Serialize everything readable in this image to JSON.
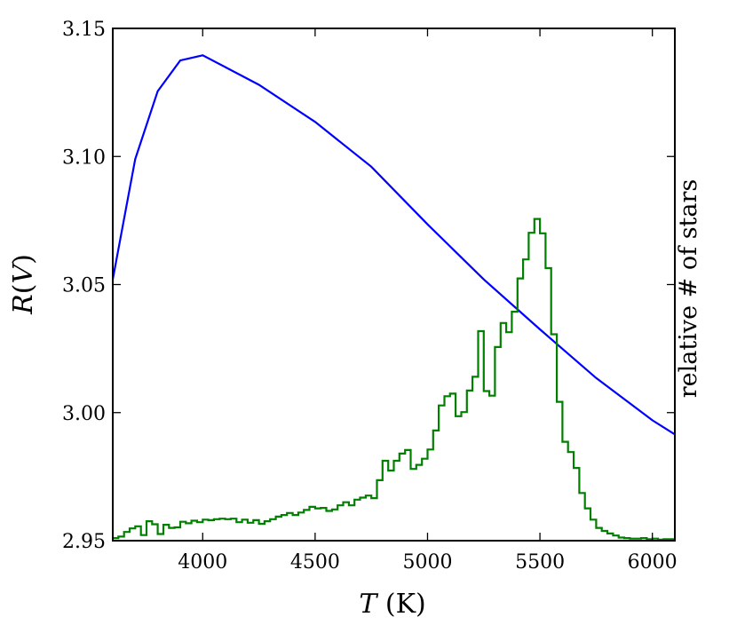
{
  "chart_data": {
    "type": "line",
    "title": "",
    "xlabel": "T (K)",
    "ylabel": "R(V)",
    "y2label": "relative # of stars",
    "xlim": [
      3600,
      6100
    ],
    "ylim": [
      2.95,
      3.15
    ],
    "x_ticks": [
      4000,
      4500,
      5000,
      5500,
      6000
    ],
    "y_ticks": [
      2.95,
      3.0,
      3.05,
      3.1,
      3.15
    ],
    "y_tick_labels": [
      "2.95",
      "3.00",
      "3.05",
      "3.10",
      "3.15"
    ],
    "grid": false,
    "legend": "none",
    "series": [
      {
        "kind": "line",
        "color": "#0000ff",
        "x": [
          3600,
          3700,
          3800,
          3900,
          4000,
          4250,
          4500,
          4750,
          5000,
          5250,
          5500,
          5750,
          6000,
          6100
        ],
        "y": [
          3.052,
          3.099,
          3.1255,
          3.1375,
          3.1395,
          3.128,
          3.1135,
          3.096,
          3.0735,
          3.052,
          3.0325,
          3.0135,
          2.997,
          2.9915
        ]
      },
      {
        "kind": "step-histogram",
        "color": "#007f00",
        "bin_width": 25,
        "bin_start": 3600,
        "relative_counts": [
          0.005,
          0.008,
          0.017,
          0.024,
          0.028,
          0.011,
          0.038,
          0.032,
          0.013,
          0.031,
          0.025,
          0.026,
          0.037,
          0.034,
          0.039,
          0.036,
          0.041,
          0.04,
          0.042,
          0.043,
          0.042,
          0.043,
          0.036,
          0.041,
          0.035,
          0.04,
          0.033,
          0.038,
          0.042,
          0.047,
          0.05,
          0.054,
          0.05,
          0.055,
          0.06,
          0.066,
          0.063,
          0.064,
          0.058,
          0.061,
          0.069,
          0.075,
          0.069,
          0.08,
          0.084,
          0.088,
          0.083,
          0.118,
          0.156,
          0.137,
          0.156,
          0.17,
          0.177,
          0.14,
          0.148,
          0.16,
          0.178,
          0.215,
          0.264,
          0.282,
          0.287,
          0.243,
          0.251,
          0.293,
          0.32,
          0.409,
          0.292,
          0.283,
          0.378,
          0.425,
          0.407,
          0.447,
          0.512,
          0.549,
          0.601,
          0.628,
          0.6,
          0.532,
          0.403,
          0.271,
          0.193,
          0.173,
          0.142,
          0.093,
          0.063,
          0.041,
          0.025,
          0.019,
          0.014,
          0.01,
          0.006,
          0.005,
          0.004,
          0.004,
          0.005,
          0.003,
          0.004,
          0.002,
          0.003,
          0.003
        ]
      }
    ]
  }
}
